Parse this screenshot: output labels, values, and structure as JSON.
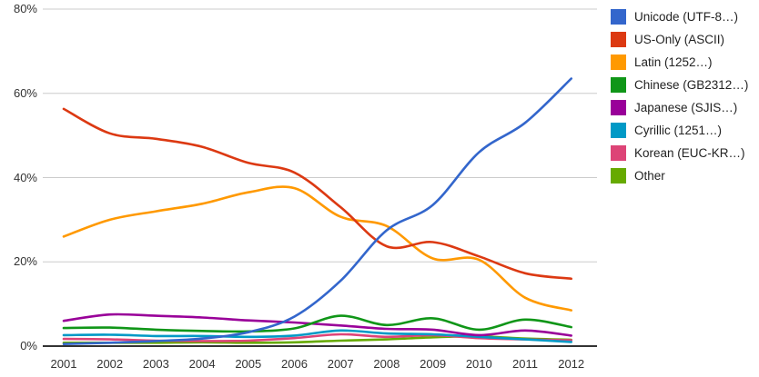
{
  "chart_data": {
    "type": "line",
    "title": "",
    "xlabel": "",
    "ylabel": "",
    "x": [
      2001,
      2002,
      2003,
      2004,
      2005,
      2006,
      2007,
      2008,
      2009,
      2010,
      2011,
      2012
    ],
    "x_ticks": [
      "2001",
      "2002",
      "2003",
      "2004",
      "2005",
      "2006",
      "2007",
      "2008",
      "2009",
      "2010",
      "2011",
      "2012"
    ],
    "y_ticks": [
      "0%",
      "20%",
      "40%",
      "60%",
      "80%"
    ],
    "ylim": [
      0,
      80
    ],
    "grid": true,
    "legend_position": "right",
    "axis_color": "#333333",
    "gridline_color": "#cccccc",
    "baseline_color": "#333333",
    "series": [
      {
        "name": "Unicode (UTF-8…)",
        "color": "#3366CC",
        "values": [
          0.5,
          0.8,
          1.2,
          1.8,
          3.3,
          7.0,
          15.5,
          27.5,
          33.5,
          46.0,
          53.0,
          63.5
        ]
      },
      {
        "name": "US-Only (ASCII)",
        "color": "#DC3912",
        "values": [
          56.3,
          50.5,
          49.2,
          47.3,
          43.5,
          41.2,
          33.0,
          23.7,
          24.7,
          21.3,
          17.3,
          16.0
        ]
      },
      {
        "name": "Latin (1252…)",
        "color": "#FF9900",
        "values": [
          26.0,
          30.0,
          32.0,
          33.8,
          36.5,
          37.5,
          30.7,
          28.5,
          20.8,
          20.5,
          11.5,
          8.5
        ]
      },
      {
        "name": "Chinese (GB2312…)",
        "color": "#109618",
        "values": [
          4.3,
          4.4,
          3.9,
          3.6,
          3.5,
          4.2,
          7.2,
          5.0,
          6.6,
          3.9,
          6.3,
          4.5
        ]
      },
      {
        "name": "Japanese (SJIS…)",
        "color": "#990099",
        "values": [
          6.0,
          7.5,
          7.2,
          6.8,
          6.1,
          5.6,
          4.9,
          4.1,
          3.9,
          2.6,
          3.7,
          2.5
        ]
      },
      {
        "name": "Cyrillic (1251…)",
        "color": "#0099C6",
        "values": [
          2.6,
          2.7,
          2.4,
          2.4,
          2.2,
          2.5,
          3.7,
          3.0,
          2.8,
          2.2,
          1.6,
          1.0
        ]
      },
      {
        "name": "Korean (EUC-KR…)",
        "color": "#DD4477",
        "values": [
          1.7,
          1.6,
          1.3,
          1.2,
          1.3,
          1.9,
          2.8,
          2.2,
          2.6,
          1.9,
          1.6,
          1.4
        ]
      },
      {
        "name": "Other",
        "color": "#66AA00",
        "values": [
          0.8,
          0.8,
          0.8,
          0.9,
          0.8,
          0.9,
          1.3,
          1.6,
          2.1,
          2.3,
          1.8,
          1.5
        ]
      }
    ]
  }
}
